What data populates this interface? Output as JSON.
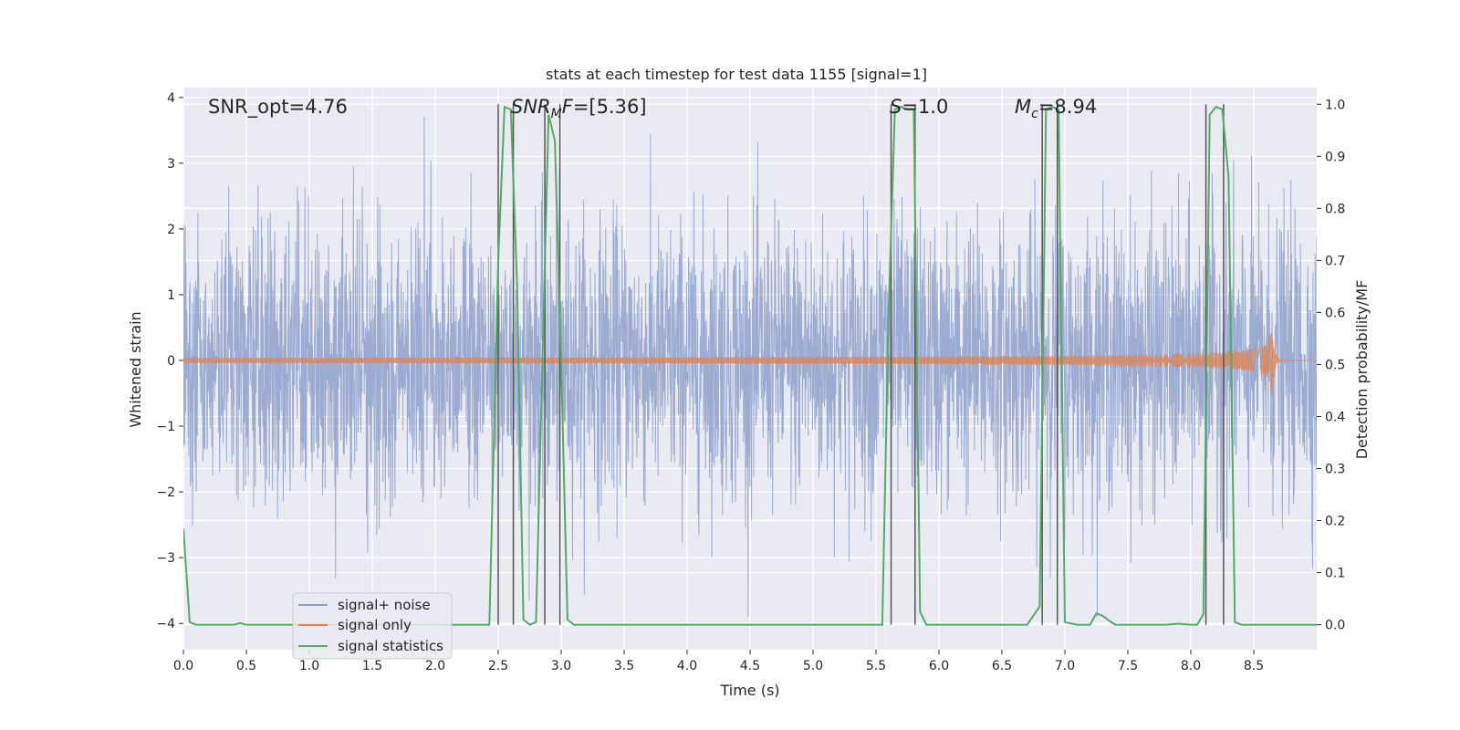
{
  "chart_data": {
    "type": "line",
    "title": "stats at each timestep for test data 1155 [signal=1]",
    "xlabel": "Time (s)",
    "ylabel_left": "Whitened strain",
    "ylabel_right": "Detection probability/MF",
    "xlim": [
      0.0,
      9.0
    ],
    "ylim_left": [
      -4.4,
      4.15
    ],
    "ylim_right": [
      -0.048,
      1.032
    ],
    "x_ticks": [
      "0.0",
      "0.5",
      "1.0",
      "1.5",
      "2.0",
      "2.5",
      "3.0",
      "3.5",
      "4.0",
      "4.5",
      "5.0",
      "5.5",
      "6.0",
      "6.5",
      "7.0",
      "7.5",
      "8.0",
      "8.5"
    ],
    "y_ticks_left": [
      "4",
      "3",
      "2",
      "1",
      "0",
      "−1",
      "−2",
      "−3",
      "−4"
    ],
    "y_ticks_right": [
      "1.0",
      "0.9",
      "0.8",
      "0.7",
      "0.6",
      "0.5",
      "0.4",
      "0.3",
      "0.2",
      "0.1",
      "0.0"
    ],
    "grid": true,
    "legend_position": "lower-left",
    "annotations": [
      {
        "text": "SNR_opt=4.76",
        "x": 0.19
      },
      {
        "text": "SNR_MF=[5.36]",
        "x": 2.6
      },
      {
        "text": "S=1.0",
        "x": 5.6
      },
      {
        "text": "M_c=8.94",
        "x": 6.6
      }
    ],
    "series": [
      {
        "name": "signal+ noise",
        "color": "#8da0cb",
        "axis": "left",
        "description": "whitened strain noise, amplitude ~±2.7"
      },
      {
        "name": "signal only",
        "color": "#dd8452",
        "axis": "left",
        "description": "chirp growing from ~0 at t=4 to peak ~0.5 near t=8.65, then ring-down"
      },
      {
        "name": "signal statistics",
        "color": "#55a868",
        "axis": "right",
        "x": [
          0.0,
          0.05,
          0.1,
          0.2,
          0.3,
          0.4,
          0.45,
          0.5,
          1.0,
          2.0,
          2.43,
          2.5,
          2.55,
          2.6,
          2.65,
          2.7,
          2.75,
          2.8,
          2.85,
          2.9,
          2.95,
          3.0,
          3.05,
          3.1,
          3.2,
          4.0,
          5.0,
          5.55,
          5.6,
          5.65,
          5.7,
          5.75,
          5.8,
          5.85,
          5.9,
          5.95,
          6.0,
          6.5,
          6.7,
          6.8,
          6.85,
          6.9,
          6.95,
          7.0,
          7.1,
          7.2,
          7.25,
          7.3,
          7.35,
          7.4,
          7.5,
          7.8,
          7.9,
          8.0,
          8.05,
          8.1,
          8.15,
          8.2,
          8.25,
          8.3,
          8.35,
          8.4,
          8.5,
          9.0
        ],
        "values": [
          0.185,
          0.005,
          0.0,
          0.0,
          0.0,
          0.0,
          0.003,
          0.0,
          0.0,
          0.0,
          0.0,
          0.7,
          0.995,
          0.99,
          0.65,
          0.01,
          0.0,
          0.005,
          0.5,
          0.98,
          0.93,
          0.5,
          0.01,
          0.0,
          0.0,
          0.0,
          0.0,
          0.0,
          0.6,
          0.99,
          0.995,
          0.99,
          0.99,
          0.025,
          0.0,
          0.0,
          0.0,
          0.0,
          0.0,
          0.035,
          0.99,
          0.995,
          0.99,
          0.005,
          0.0,
          0.0,
          0.022,
          0.017,
          0.008,
          0.0,
          0.0,
          0.0,
          0.002,
          0.0,
          0.0,
          0.02,
          0.98,
          0.995,
          0.99,
          0.86,
          0.005,
          0.0,
          0.0,
          0.0
        ]
      }
    ],
    "vlines": [
      2.5,
      2.62,
      2.87,
      2.99,
      5.62,
      5.81,
      6.82,
      6.94,
      8.12,
      8.26
    ]
  }
}
